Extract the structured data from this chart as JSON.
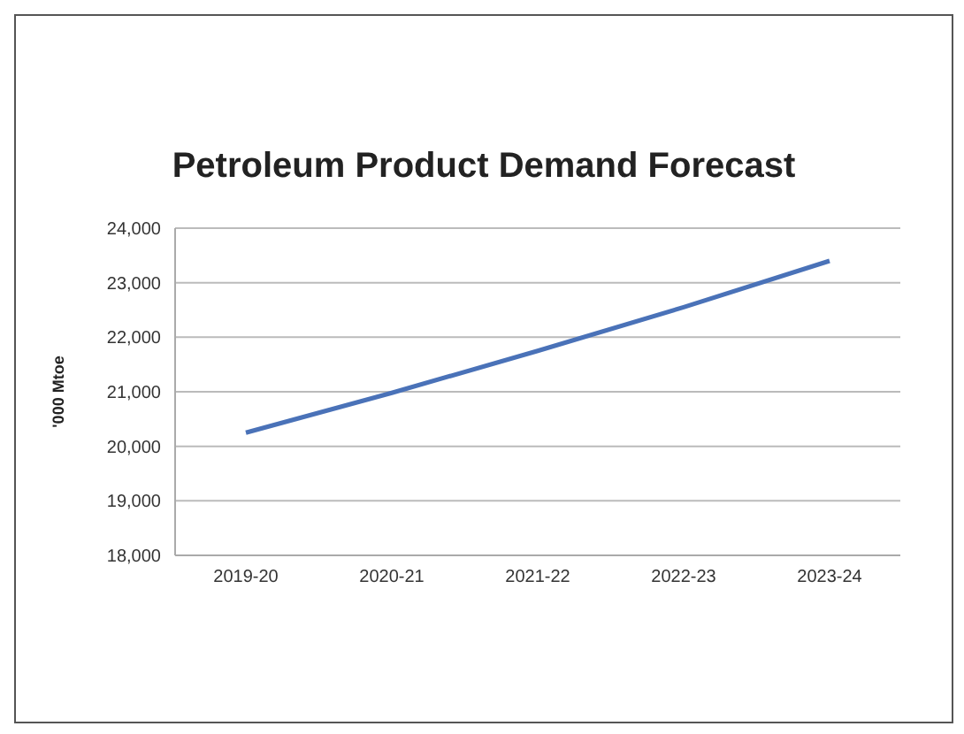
{
  "chart_data": {
    "type": "line",
    "title": "Petroleum Product Demand Forecast",
    "ylabel": "'000 Mtoe",
    "categories": [
      "2019-20",
      "2020-21",
      "2021-22",
      "2022-23",
      "2023-24"
    ],
    "series": [
      {
        "color": "#4a72b8",
        "values": [
          20250,
          20980,
          21750,
          22550,
          23400
        ]
      }
    ],
    "ylim": [
      18000,
      24000
    ],
    "yticks": [
      {
        "value": 18000,
        "label": "18,000"
      },
      {
        "value": 19000,
        "label": "19,000"
      },
      {
        "value": 20000,
        "label": "20,000"
      },
      {
        "value": 21000,
        "label": "21,000"
      },
      {
        "value": 22000,
        "label": "22,000"
      },
      {
        "value": 23000,
        "label": "23,000"
      },
      {
        "value": 24000,
        "label": "24,000"
      }
    ],
    "grid": "y",
    "marker": "none"
  }
}
